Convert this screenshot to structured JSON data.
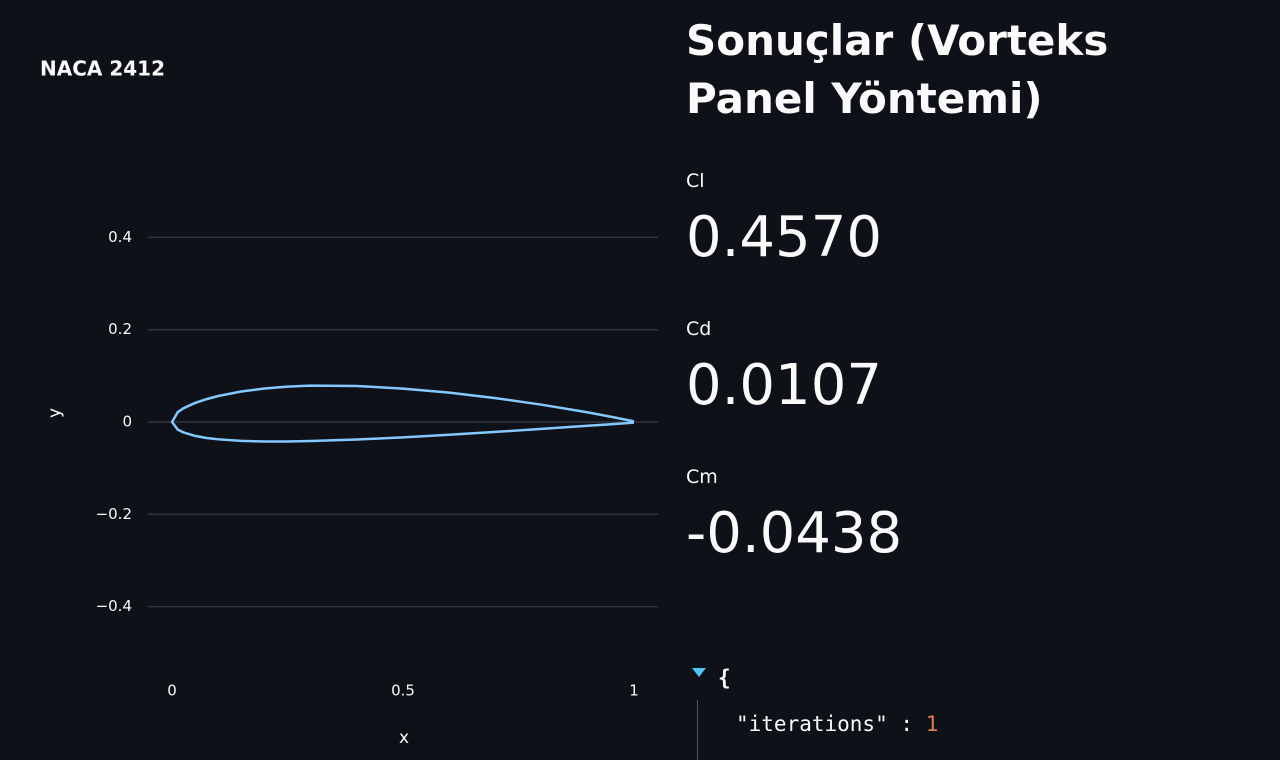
{
  "chart_data": {
    "type": "line",
    "title": "NACA 2412",
    "x_label": "x",
    "y_label": "y",
    "x": [
      1,
      0.95,
      0.9,
      0.8,
      0.7,
      0.6,
      0.5,
      0.4,
      0.3,
      0.25,
      0.2,
      0.15,
      0.1,
      0.075,
      0.05,
      0.025,
      0.0125,
      0,
      0.0125,
      0.025,
      0.05,
      0.075,
      0.1,
      0.15,
      0.2,
      0.25,
      0.3,
      0.4,
      0.5,
      0.6,
      0.7,
      0.8,
      0.9,
      0.95,
      1
    ],
    "values": [
      0.0013,
      0.0114,
      0.0208,
      0.0375,
      0.0518,
      0.0636,
      0.0724,
      0.078,
      0.0788,
      0.0767,
      0.0726,
      0.0661,
      0.0563,
      0.0496,
      0.0413,
      0.0299,
      0.0215,
      0,
      -0.0165,
      -0.0227,
      -0.0301,
      -0.0346,
      -0.0375,
      -0.041,
      -0.0423,
      -0.0422,
      -0.0412,
      -0.038,
      -0.0334,
      -0.0276,
      -0.0214,
      -0.015,
      -0.0082,
      -0.0048,
      -0.0013
    ],
    "color": "#83c9ff",
    "xlim": [
      -0.052,
      1.052
    ],
    "ylim": [
      -0.52,
      0.52
    ],
    "xticks": [
      0,
      0.5,
      1
    ],
    "yticks": [
      {
        "value": -0.4,
        "label": "−0.4"
      },
      {
        "value": -0.2,
        "label": "−0.2"
      },
      0,
      0.2,
      0.4
    ],
    "grid": true
  },
  "results": {
    "title": "Sonuçlar (Vorteks Panel Yöntemi)",
    "metrics": [
      {
        "label": "Cl",
        "value": "0.4570"
      },
      {
        "label": "Cd",
        "value": "0.0107"
      },
      {
        "label": "Cm",
        "value": "-0.0438"
      }
    ],
    "json_view": {
      "open": "{",
      "key": "\"iterations\"",
      "separator": ":",
      "value": 1
    }
  }
}
